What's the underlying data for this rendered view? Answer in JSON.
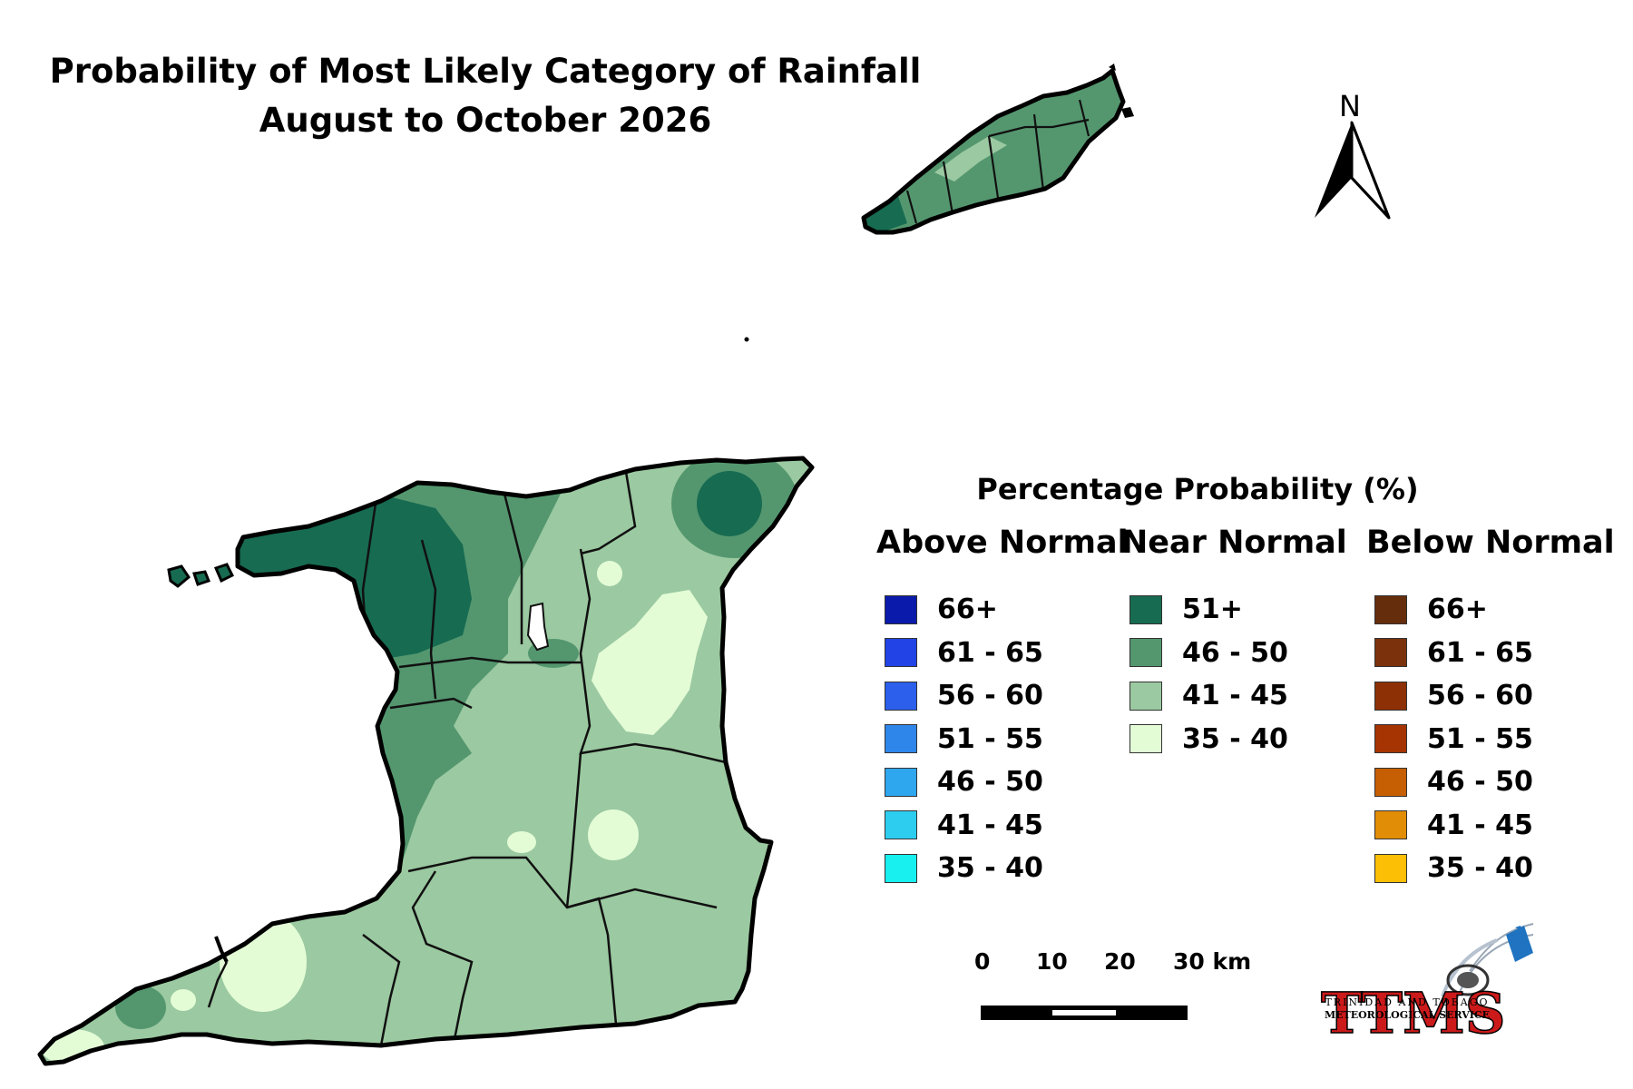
{
  "title_line1": "Probability of Most Likely Category of Rainfall",
  "title_line2": "August  to October 2026",
  "north_label": "N",
  "legend": {
    "heading": "Percentage Probability (%)",
    "above": {
      "name": "Above Normal",
      "items": [
        {
          "label": "66+",
          "color": "#0a1aaa"
        },
        {
          "label": "61 - 65",
          "color": "#2243e6"
        },
        {
          "label": "56 - 60",
          "color": "#2b5fec"
        },
        {
          "label": "51 - 55",
          "color": "#2e86ea"
        },
        {
          "label": "46 - 50",
          "color": "#2ea7ef"
        },
        {
          "label": "41 - 45",
          "color": "#2ccdef"
        },
        {
          "label": "35 - 40",
          "color": "#18f0ef"
        }
      ]
    },
    "near": {
      "name": "Near Normal",
      "items": [
        {
          "label": "51+",
          "color": "#176b51"
        },
        {
          "label": "46 - 50",
          "color": "#54976f"
        },
        {
          "label": "41 - 45",
          "color": "#9bc9a1"
        },
        {
          "label": "35 - 40",
          "color": "#e3fcd6"
        }
      ]
    },
    "below": {
      "name": "Below Normal",
      "items": [
        {
          "label": "66+",
          "color": "#652d0c"
        },
        {
          "label": "61 - 65",
          "color": "#7b320c"
        },
        {
          "label": "56 - 60",
          "color": "#8d3006"
        },
        {
          "label": "51 - 55",
          "color": "#a63402"
        },
        {
          "label": "46 - 50",
          "color": "#c65e03"
        },
        {
          "label": "41 - 45",
          "color": "#e28d06"
        },
        {
          "label": "35 - 40",
          "color": "#fcbf05"
        }
      ]
    }
  },
  "scale_bar": {
    "ticks": [
      "0",
      "10",
      "20",
      "30 km"
    ]
  },
  "logo": {
    "acronym": "TTMS",
    "line1": "TRINIDAD AND TOBAGO",
    "line2": "METEOROLOGICAL SERVICE"
  }
}
